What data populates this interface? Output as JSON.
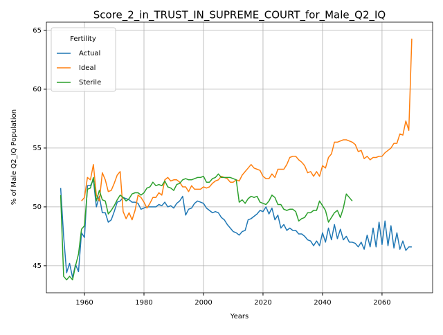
{
  "chart_data": {
    "type": "line",
    "title": "Score_2_in_TRUST_IN_SUPREME_COURT_for_Male_Q2_IQ",
    "x_label": "Years",
    "y_label": "% of Male Q2_IQ Population",
    "legend_title": "Fertility",
    "legend_loc": "upper left",
    "grid": true,
    "xlim": [
      1947.2,
      2077.0
    ],
    "xticks": [
      1960,
      1980,
      2000,
      2020,
      2040,
      2060
    ],
    "ylim": [
      42.7,
      65.7
    ],
    "yticks": [
      45,
      50,
      55,
      60,
      65
    ],
    "x": [
      1952,
      1953,
      1954,
      1955,
      1956,
      1957,
      1958,
      1959,
      1960,
      1961,
      1962,
      1963,
      1964,
      1965,
      1966,
      1967,
      1968,
      1969,
      1970,
      1971,
      1972,
      1973,
      1974,
      1975,
      1976,
      1977,
      1978,
      1979,
      1980,
      1981,
      1982,
      1983,
      1984,
      1985,
      1986,
      1987,
      1988,
      1989,
      1990,
      1991,
      1992,
      1993,
      1994,
      1995,
      1996,
      1997,
      1998,
      1999,
      2000,
      2001,
      2002,
      2003,
      2004,
      2005,
      2006,
      2007,
      2008,
      2009,
      2010,
      2011,
      2012,
      2013,
      2014,
      2015,
      2016,
      2017,
      2018,
      2019,
      2020,
      2021,
      2022,
      2023,
      2024,
      2025,
      2026,
      2027,
      2028,
      2029,
      2030,
      2031,
      2032,
      2033,
      2034,
      2035,
      2036,
      2037,
      2038,
      2039,
      2040,
      2041,
      2042,
      2043,
      2044,
      2045,
      2046,
      2047,
      2048,
      2049,
      2050,
      2051,
      2052,
      2053,
      2054,
      2055,
      2056,
      2057,
      2058,
      2059,
      2060,
      2061,
      2062,
      2063,
      2064,
      2065,
      2066,
      2067,
      2068,
      2069,
      2070
    ],
    "series": [
      {
        "name": "Actual",
        "color": "#1f77b4",
        "values": [
          51.6,
          47.5,
          44.4,
          45.2,
          44.0,
          45.1,
          44.5,
          47.8,
          47.4,
          51.8,
          51.8,
          52.3,
          50.0,
          50.9,
          49.5,
          49.5,
          48.7,
          48.9,
          49.6,
          50.4,
          50.5,
          50.8,
          50.7,
          50.6,
          50.4,
          50.4,
          50.3,
          49.8,
          49.9,
          50.0,
          50.0,
          50.0,
          50.0,
          50.2,
          50.1,
          50.4,
          50.0,
          50.1,
          49.9,
          50.3,
          50.5,
          50.9,
          49.3,
          49.8,
          49.9,
          50.3,
          50.5,
          50.4,
          50.3,
          49.9,
          49.7,
          49.5,
          49.6,
          49.5,
          49.1,
          48.9,
          48.5,
          48.2,
          47.9,
          47.8,
          47.6,
          47.9,
          48.0,
          48.9,
          49.0,
          49.2,
          49.4,
          49.7,
          49.6,
          50.0,
          49.4,
          49.9,
          48.9,
          49.3,
          48.2,
          48.5,
          48.0,
          48.2,
          48.0,
          48.0,
          47.7,
          47.7,
          47.5,
          47.2,
          47.1,
          46.7,
          47.1,
          46.7,
          47.8,
          47.0,
          48.2,
          47.2,
          48.5,
          47.3,
          48.1,
          47.2,
          47.5,
          47.0,
          47.0,
          46.9,
          46.6,
          47.0,
          46.4,
          47.6,
          46.6,
          48.2,
          46.6,
          48.7,
          46.8,
          48.8,
          46.7,
          48.4,
          46.5,
          47.8,
          46.4,
          47.1,
          46.3,
          46.6,
          46.6
        ]
      },
      {
        "name": "Ideal",
        "color": "#ff7f0e",
        "values": [
          null,
          null,
          null,
          null,
          null,
          null,
          null,
          50.5,
          50.8,
          52.5,
          52.3,
          53.6,
          51.0,
          50.5,
          52.9,
          52.3,
          51.3,
          51.4,
          52.0,
          52.7,
          53.0,
          49.6,
          49.0,
          49.5,
          48.9,
          49.7,
          51.0,
          50.8,
          50.4,
          49.9,
          50.3,
          50.8,
          50.8,
          51.2,
          51.0,
          52.3,
          52.5,
          52.2,
          52.3,
          52.3,
          52.1,
          51.7,
          51.7,
          51.3,
          51.8,
          51.5,
          51.5,
          51.5,
          51.7,
          51.6,
          51.7,
          52.0,
          52.2,
          52.3,
          52.6,
          52.5,
          52.4,
          52.1,
          52.1,
          52.3,
          52.2,
          52.7,
          53.0,
          53.3,
          53.6,
          53.3,
          53.2,
          53.1,
          52.6,
          52.4,
          52.4,
          52.8,
          52.5,
          53.2,
          53.2,
          53.2,
          53.6,
          54.2,
          54.3,
          54.3,
          54.0,
          53.8,
          53.5,
          52.9,
          53.0,
          52.6,
          53.0,
          52.6,
          53.5,
          53.3,
          54.2,
          54.5,
          55.5,
          55.5,
          55.6,
          55.7,
          55.7,
          55.6,
          55.5,
          55.3,
          54.7,
          54.8,
          54.1,
          54.3,
          54.0,
          54.2,
          54.2,
          54.3,
          54.3,
          54.6,
          54.8,
          55.0,
          55.4,
          55.4,
          56.2,
          56.1,
          57.3,
          56.5,
          64.3
        ]
      },
      {
        "name": "Sterile",
        "color": "#2ca02c",
        "values": [
          51.0,
          44.1,
          43.8,
          44.1,
          43.8,
          45.0,
          46.0,
          48.1,
          48.4,
          51.5,
          51.6,
          52.5,
          50.5,
          51.4,
          50.6,
          50.5,
          49.4,
          49.7,
          50.1,
          50.6,
          51.0,
          50.8,
          50.5,
          50.7,
          51.1,
          51.2,
          51.2,
          51.0,
          51.2,
          51.6,
          51.7,
          52.1,
          51.8,
          51.9,
          51.8,
          52.2,
          51.7,
          51.6,
          51.4,
          51.9,
          52.0,
          52.3,
          52.4,
          52.3,
          52.3,
          52.4,
          52.5,
          52.5,
          52.6,
          52.1,
          52.1,
          52.4,
          52.5,
          52.8,
          52.5,
          52.5,
          52.5,
          52.5,
          52.4,
          52.3,
          50.4,
          50.6,
          50.3,
          50.7,
          50.9,
          50.8,
          50.9,
          50.4,
          50.3,
          50.2,
          50.5,
          51.0,
          50.8,
          50.2,
          50.2,
          49.8,
          49.7,
          49.8,
          49.8,
          49.6,
          48.8,
          49.0,
          49.1,
          49.5,
          49.5,
          49.7,
          49.7,
          50.5,
          50.1,
          49.7,
          48.7,
          49.1,
          49.5,
          49.7,
          49.1,
          49.9,
          51.1,
          50.8,
          50.5,
          null,
          null,
          null,
          null,
          null,
          null,
          null,
          null,
          null,
          null,
          null,
          null,
          null,
          null,
          null,
          null,
          null,
          null,
          null,
          null
        ]
      }
    ]
  }
}
